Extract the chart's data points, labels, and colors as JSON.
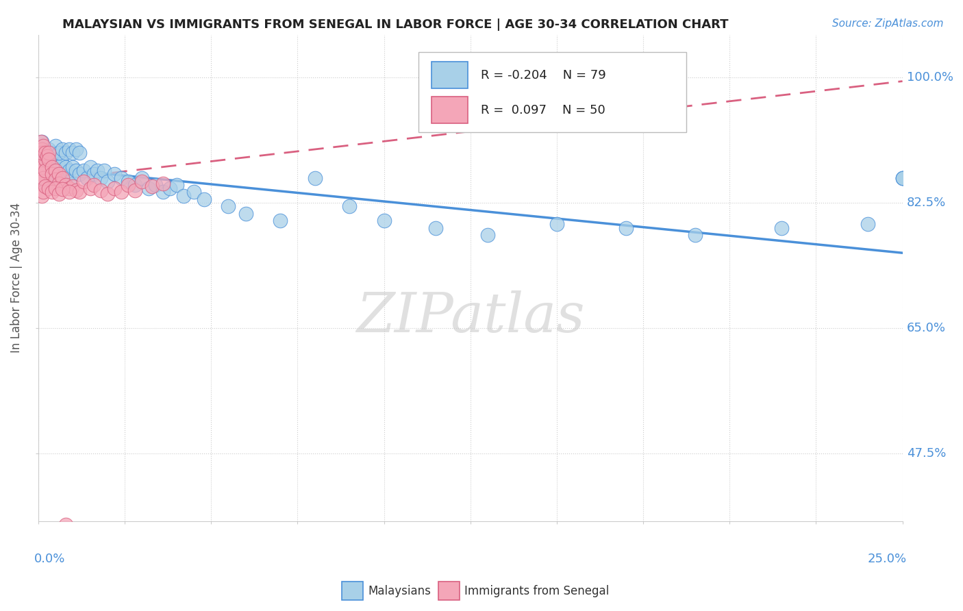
{
  "title": "MALAYSIAN VS IMMIGRANTS FROM SENEGAL IN LABOR FORCE | AGE 30-34 CORRELATION CHART",
  "source_text": "Source: ZipAtlas.com",
  "ylabel": "In Labor Force | Age 30-34",
  "xlim": [
    0.0,
    0.25
  ],
  "ylim": [
    0.38,
    1.06
  ],
  "legend_R1": "-0.204",
  "legend_N1": "79",
  "legend_R2": " 0.097",
  "legend_N2": "50",
  "color_blue": "#A8D0E8",
  "color_pink": "#F4A6B8",
  "color_blue_line": "#4A90D9",
  "color_pink_line": "#D96080",
  "watermark": "ZIPatlas",
  "blue_line_x": [
    0.0,
    0.25
  ],
  "blue_line_y": [
    0.875,
    0.755
  ],
  "pink_line_x": [
    0.0,
    0.25
  ],
  "pink_line_y": [
    0.855,
    0.995
  ],
  "blue_x": [
    0.0008,
    0.001,
    0.001,
    0.001,
    0.0012,
    0.0015,
    0.002,
    0.002,
    0.0022,
    0.0025,
    0.003,
    0.003,
    0.0035,
    0.004,
    0.004,
    0.0045,
    0.005,
    0.005,
    0.006,
    0.006,
    0.007,
    0.007,
    0.008,
    0.008,
    0.009,
    0.009,
    0.01,
    0.011,
    0.012,
    0.013,
    0.014,
    0.015,
    0.016,
    0.017,
    0.018,
    0.019,
    0.02,
    0.022,
    0.024,
    0.026,
    0.028,
    0.03,
    0.032,
    0.034,
    0.036,
    0.038,
    0.04,
    0.042,
    0.045,
    0.048,
    0.001,
    0.001,
    0.002,
    0.003,
    0.004,
    0.005,
    0.006,
    0.007,
    0.008,
    0.009,
    0.01,
    0.011,
    0.012,
    0.055,
    0.06,
    0.07,
    0.08,
    0.09,
    0.1,
    0.115,
    0.13,
    0.15,
    0.17,
    0.19,
    0.215,
    0.24,
    0.25,
    0.25,
    0.25
  ],
  "blue_y": [
    0.875,
    0.87,
    0.86,
    0.855,
    0.865,
    0.88,
    0.89,
    0.875,
    0.86,
    0.87,
    0.885,
    0.87,
    0.86,
    0.88,
    0.865,
    0.875,
    0.89,
    0.87,
    0.875,
    0.86,
    0.88,
    0.865,
    0.875,
    0.86,
    0.87,
    0.855,
    0.875,
    0.87,
    0.865,
    0.87,
    0.86,
    0.875,
    0.865,
    0.87,
    0.86,
    0.87,
    0.855,
    0.865,
    0.86,
    0.855,
    0.85,
    0.86,
    0.845,
    0.85,
    0.84,
    0.845,
    0.85,
    0.835,
    0.84,
    0.83,
    0.91,
    0.9,
    0.895,
    0.9,
    0.895,
    0.905,
    0.895,
    0.9,
    0.895,
    0.9,
    0.895,
    0.9,
    0.895,
    0.82,
    0.81,
    0.8,
    0.86,
    0.82,
    0.8,
    0.79,
    0.78,
    0.795,
    0.79,
    0.78,
    0.79,
    0.795,
    0.86,
    0.86,
    0.86
  ],
  "pink_x": [
    0.0008,
    0.001,
    0.001,
    0.001,
    0.0012,
    0.0015,
    0.002,
    0.002,
    0.0008,
    0.001,
    0.001,
    0.0015,
    0.002,
    0.0025,
    0.003,
    0.003,
    0.004,
    0.004,
    0.005,
    0.005,
    0.006,
    0.006,
    0.007,
    0.008,
    0.009,
    0.01,
    0.011,
    0.012,
    0.013,
    0.015,
    0.016,
    0.018,
    0.02,
    0.022,
    0.024,
    0.026,
    0.028,
    0.03,
    0.033,
    0.036,
    0.001,
    0.0015,
    0.002,
    0.003,
    0.004,
    0.005,
    0.006,
    0.007,
    0.008,
    0.009
  ],
  "pink_y": [
    0.88,
    0.87,
    0.865,
    0.855,
    0.875,
    0.86,
    0.885,
    0.87,
    0.91,
    0.9,
    0.895,
    0.905,
    0.895,
    0.89,
    0.895,
    0.885,
    0.875,
    0.865,
    0.87,
    0.858,
    0.865,
    0.852,
    0.86,
    0.85,
    0.845,
    0.848,
    0.842,
    0.84,
    0.855,
    0.845,
    0.85,
    0.842,
    0.838,
    0.845,
    0.84,
    0.85,
    0.842,
    0.855,
    0.848,
    0.852,
    0.835,
    0.84,
    0.848,
    0.845,
    0.84,
    0.845,
    0.838,
    0.844,
    0.375,
    0.84
  ]
}
